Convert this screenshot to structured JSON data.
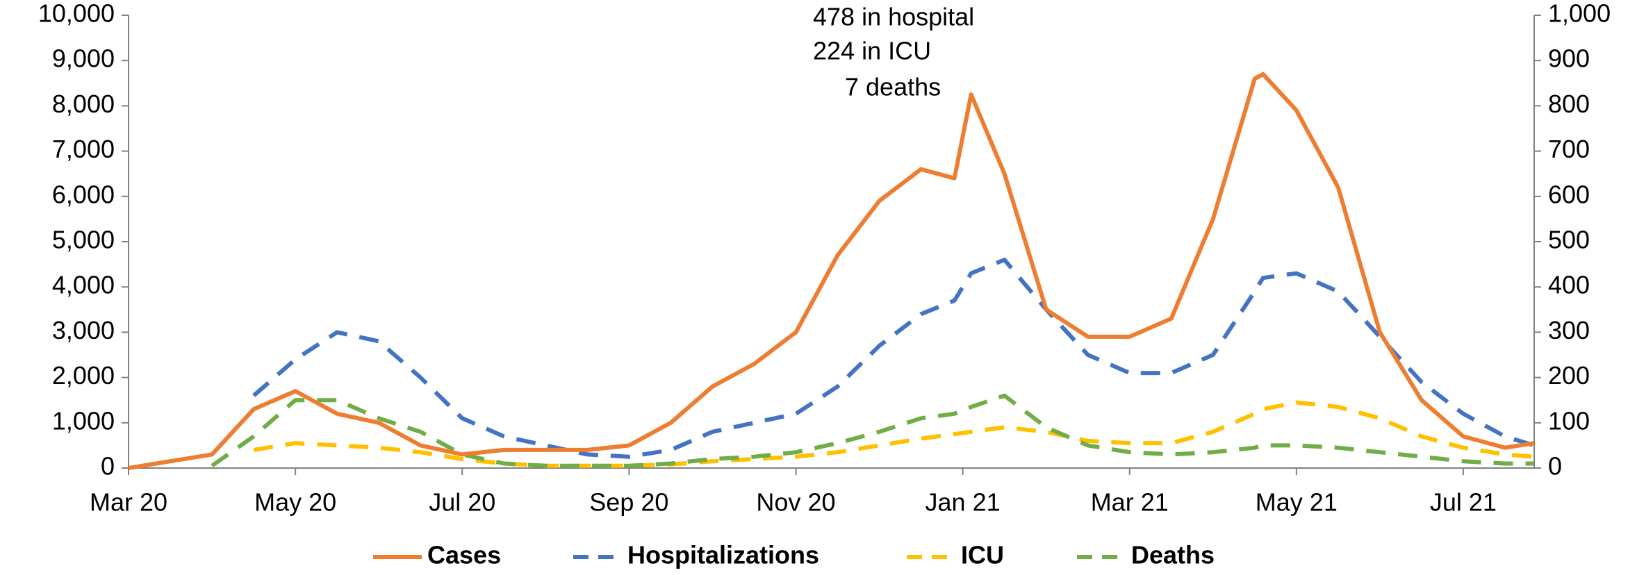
{
  "chart_data": {
    "type": "line",
    "annotations": [
      "478 in hospital",
      "224 in ICU",
      "7 deaths"
    ],
    "x": [
      0,
      1,
      1.5,
      2,
      2.5,
      3,
      3.5,
      4,
      4.5,
      5,
      5.5,
      6,
      6.5,
      7,
      7.5,
      8,
      8.5,
      9,
      9.5,
      9.9,
      10.1,
      10.5,
      11,
      11.5,
      12,
      12.5,
      13,
      13.5,
      13.6,
      14,
      14.5,
      15,
      15.5,
      16,
      16.5,
      16.85
    ],
    "xlim": [
      0,
      16.85
    ],
    "xticks": [
      {
        "value": 0,
        "label": "Mar 20"
      },
      {
        "value": 2,
        "label": "May 20"
      },
      {
        "value": 4,
        "label": "Jul 20"
      },
      {
        "value": 6,
        "label": "Sep 20"
      },
      {
        "value": 8,
        "label": "Nov 20"
      },
      {
        "value": 10,
        "label": "Jan 21"
      },
      {
        "value": 12,
        "label": "Mar 21"
      },
      {
        "value": 14,
        "label": "May 21"
      },
      {
        "value": 16,
        "label": "Jul 21"
      }
    ],
    "ylim": [
      0,
      10000
    ],
    "yticks": [
      0,
      {
        "value": 1000,
        "label": "1,000"
      },
      {
        "value": 2000,
        "label": "2,000"
      },
      {
        "value": 3000,
        "label": "3,000"
      },
      {
        "value": 4000,
        "label": "4,000"
      },
      {
        "value": 5000,
        "label": "5,000"
      },
      {
        "value": 6000,
        "label": "6,000"
      },
      {
        "value": 7000,
        "label": "7,000"
      },
      {
        "value": 8000,
        "label": "8,000"
      },
      {
        "value": 9000,
        "label": "9,000"
      },
      {
        "value": 10000,
        "label": "10,000"
      }
    ],
    "y2lim": [
      0,
      1000
    ],
    "y2ticks": [
      0,
      100,
      200,
      300,
      400,
      500,
      600,
      700,
      800,
      900,
      {
        "value": 1000,
        "label": "1,000"
      }
    ],
    "series": [
      {
        "name": "Cases",
        "color": "#ed7d31",
        "dashed": false,
        "values": [
          0,
          300,
          1300,
          1700,
          1200,
          1000,
          500,
          300,
          400,
          400,
          400,
          500,
          1000,
          1800,
          2300,
          3000,
          4700,
          5900,
          6600,
          6400,
          8250,
          6500,
          3500,
          2900,
          2900,
          3300,
          5500,
          8600,
          8700,
          7900,
          6200,
          3000,
          1500,
          700,
          450,
          550
        ]
      },
      {
        "name": "Hospitalizations",
        "color": "#4472c4",
        "dashed": true,
        "axis": "y2",
        "values": [
          null,
          null,
          160,
          240,
          300,
          280,
          200,
          110,
          70,
          50,
          30,
          25,
          40,
          80,
          100,
          120,
          180,
          270,
          340,
          370,
          430,
          460,
          350,
          250,
          210,
          210,
          250,
          390,
          420,
          430,
          390,
          290,
          190,
          120,
          70,
          50
        ]
      },
      {
        "name": "ICU",
        "color": "#ffc000",
        "dashed": true,
        "axis": "y2",
        "values": [
          null,
          null,
          40,
          55,
          50,
          45,
          35,
          20,
          10,
          5,
          5,
          5,
          8,
          15,
          20,
          25,
          35,
          50,
          65,
          75,
          80,
          90,
          80,
          60,
          55,
          55,
          80,
          120,
          130,
          145,
          135,
          110,
          70,
          45,
          30,
          25
        ]
      },
      {
        "name": "Deaths",
        "color": "#70ad47",
        "dashed": true,
        "axis": "y2",
        "values": [
          null,
          5,
          70,
          150,
          150,
          110,
          80,
          30,
          10,
          5,
          5,
          5,
          10,
          20,
          25,
          35,
          55,
          80,
          110,
          120,
          135,
          160,
          90,
          50,
          35,
          30,
          35,
          45,
          50,
          50,
          45,
          35,
          25,
          15,
          10,
          10
        ]
      }
    ]
  }
}
